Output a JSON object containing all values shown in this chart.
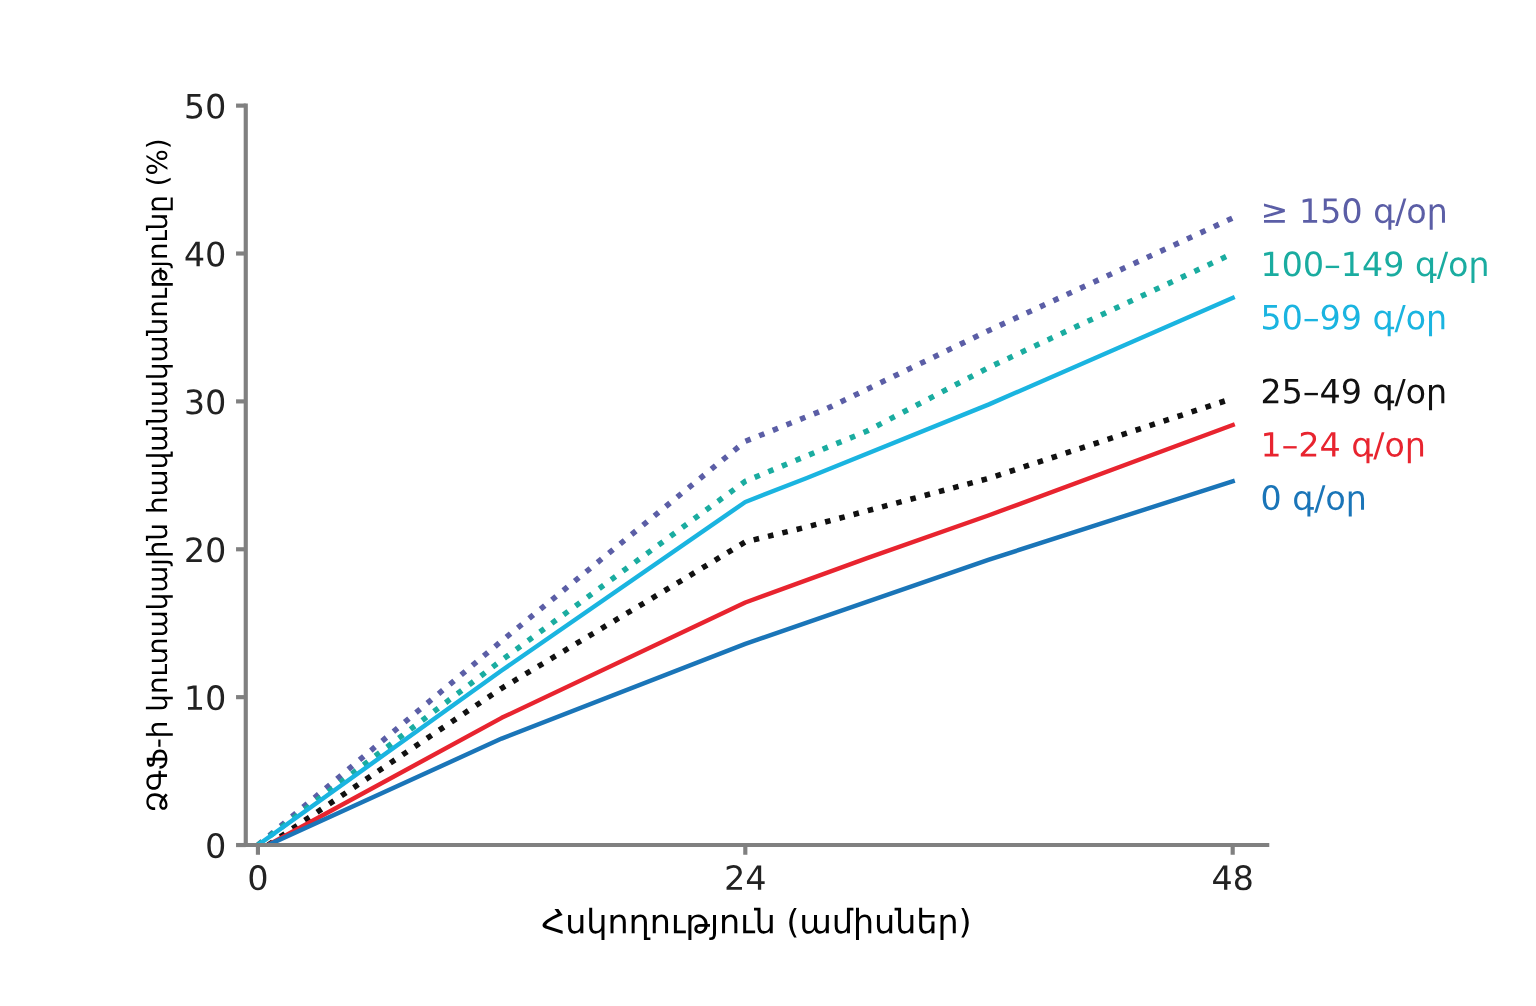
{
  "chart_data": {
    "type": "line",
    "xlabel": "Հսկողություն (ամիսներ)",
    "ylabel": "ՁԳՖ-ի կուտակային հավանականությունը (%)",
    "xlim": [
      -0.6,
      49.7
    ],
    "ylim": [
      0,
      50
    ],
    "xticks": [
      0,
      24,
      48
    ],
    "yticks": [
      0,
      10,
      20,
      30,
      40,
      50
    ],
    "grid": false,
    "legend": false,
    "marker": "none",
    "series": [
      {
        "name": "≥ 150 գ/օր",
        "color": "#5b5ea6",
        "line_style": "dotted",
        "x": [
          0,
          12,
          24,
          28,
          36,
          48
        ],
        "values": [
          0,
          13.8,
          27.3,
          29.5,
          34.8,
          42.4
        ]
      },
      {
        "name": "100–149 գ/օր",
        "color": "#1aaca0",
        "line_style": "dotted",
        "x": [
          0,
          12,
          24,
          30,
          36,
          48
        ],
        "values": [
          0,
          12.5,
          24.6,
          28,
          32.3,
          40
        ]
      },
      {
        "name": "50–99 գ/օր",
        "color": "#1ab4e0",
        "line_style": "solid",
        "x": [
          0,
          12,
          24,
          27,
          36,
          48
        ],
        "values": [
          0,
          11.8,
          23.2,
          24.8,
          29.8,
          37
        ]
      },
      {
        "name": "25–49 գ/օր",
        "color": "#111111",
        "line_style": "dotted",
        "x": [
          0.5,
          12,
          21,
          24,
          27,
          36,
          48
        ],
        "values": [
          0,
          10.6,
          18,
          20.5,
          21.5,
          24.8,
          30.2
        ]
      },
      {
        "name": "1–24 գ/օր",
        "color": "#e8242f",
        "line_style": "solid",
        "x": [
          0.5,
          12,
          24,
          30,
          36,
          48
        ],
        "values": [
          0,
          8.6,
          16.4,
          19.4,
          22.3,
          28.4
        ]
      },
      {
        "name": "0 գ/օր",
        "color": "#1a75b8",
        "line_style": "solid",
        "x": [
          0.5,
          12,
          24,
          36,
          48
        ],
        "values": [
          0,
          7.2,
          13.6,
          19.3,
          24.6
        ]
      }
    ]
  }
}
